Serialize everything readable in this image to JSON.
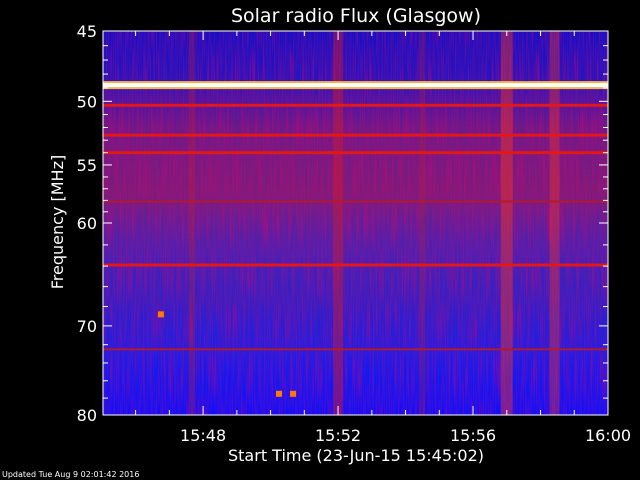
{
  "chart_data": {
    "type": "heatmap",
    "title": "Solar radio Flux (Glasgow)",
    "xlabel": "Start Time (23-Jun-15 15:45:02)",
    "ylabel": "Frequency [MHz]",
    "x_axis": {
      "units": "time (UT)",
      "range": [
        "15:45:02",
        "16:00"
      ],
      "ticks": [
        "15:48",
        "15:52",
        "15:56",
        "16:00"
      ]
    },
    "y_axis": {
      "units": "MHz",
      "range": [
        45,
        80
      ],
      "inverted": true,
      "log_scale": true,
      "ticks": [
        45,
        50,
        55,
        60,
        70,
        80
      ]
    },
    "colormap": [
      "#0000ff",
      "#3b25c8",
      "#7a2a9a",
      "#cc1a1a",
      "#ff6a00",
      "#ffffff"
    ],
    "horizontal_lines_mhz": [
      {
        "mhz": 48.8,
        "intensity": "saturated"
      },
      {
        "mhz": 50.3,
        "intensity": "high"
      },
      {
        "mhz": 52.6,
        "intensity": "high"
      },
      {
        "mhz": 54.0,
        "intensity": "high"
      },
      {
        "mhz": 58.1,
        "intensity": "medium"
      },
      {
        "mhz": 63.9,
        "intensity": "high"
      },
      {
        "mhz": 72.5,
        "intensity": "medium"
      }
    ],
    "bright_features": [
      {
        "time": "15:50:15",
        "mhz": 77.5
      },
      {
        "time": "15:50:40",
        "mhz": 77.5
      },
      {
        "time": "15:46:45",
        "mhz": 68.8
      }
    ],
    "grid": false
  },
  "footer_text": "Updated Tue Aug  9 02:01:42 2016"
}
